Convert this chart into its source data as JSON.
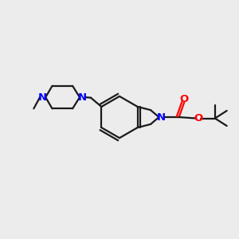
{
  "bg_color": "#ececec",
  "bond_color": "#1a1a1a",
  "N_color": "#0000ff",
  "O_color": "#ff0000",
  "line_width": 1.6,
  "font_size": 8.5,
  "xlim": [
    0,
    10
  ],
  "ylim": [
    0,
    10
  ]
}
